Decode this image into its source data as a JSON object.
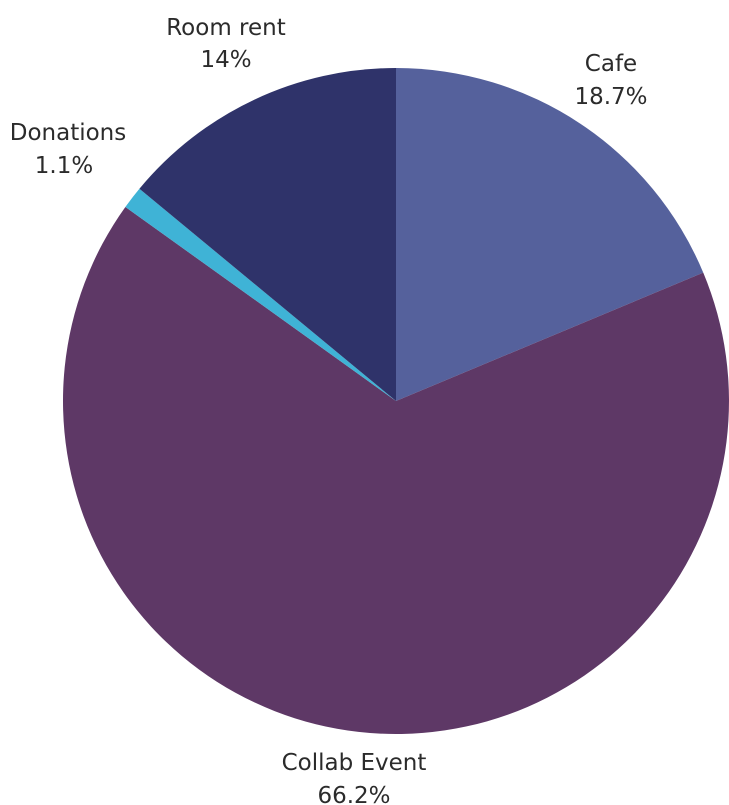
{
  "chart_data": {
    "type": "pie",
    "slices": [
      {
        "label": "Cafe",
        "value": 18.7,
        "display": "18.7%",
        "color": "#55619c"
      },
      {
        "label": "Collab Event",
        "value": 66.2,
        "display": "66.2%",
        "color": "#5e3866"
      },
      {
        "label": "Donations",
        "value": 1.1,
        "display": "1.1%",
        "color": "#3fb3d6"
      },
      {
        "label": "Room rent",
        "value": 14,
        "display": "14%",
        "color": "#2f336a"
      }
    ],
    "start_angle": "12 o'clock",
    "direction": "clockwise"
  }
}
